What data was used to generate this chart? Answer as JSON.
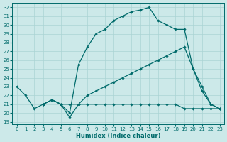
{
  "xlabel": "Humidex (Indice chaleur)",
  "xlim": [
    -0.5,
    23.5
  ],
  "ylim": [
    18.7,
    32.5
  ],
  "yticks": [
    19,
    20,
    21,
    22,
    23,
    24,
    25,
    26,
    27,
    28,
    29,
    30,
    31,
    32
  ],
  "xticks": [
    0,
    1,
    2,
    3,
    4,
    5,
    6,
    7,
    8,
    9,
    10,
    11,
    12,
    13,
    14,
    15,
    16,
    17,
    18,
    19,
    20,
    21,
    22,
    23
  ],
  "bg_color": "#cce9e9",
  "grid_color": "#aad4d4",
  "line_color": "#006b6b",
  "lines": [
    {
      "x": [
        0,
        1,
        2,
        3,
        4,
        5,
        6,
        7,
        8,
        9,
        10,
        11,
        12,
        13,
        14,
        15,
        16,
        17,
        18,
        19,
        20,
        21,
        22,
        23
      ],
      "y": [
        23.0,
        22.0,
        20.5,
        21.0,
        21.5,
        21.0,
        20.0,
        25.5,
        27.5,
        29.0,
        29.5,
        30.5,
        31.0,
        31.5,
        31.7,
        32.0,
        30.5,
        30.0,
        29.5,
        29.5,
        25.0,
        23.0,
        21.0,
        20.5
      ]
    },
    {
      "x": [
        3,
        4,
        5,
        6,
        7,
        8,
        9,
        10,
        11,
        12,
        13,
        14,
        15,
        16,
        17,
        18,
        19,
        20,
        21,
        22,
        23
      ],
      "y": [
        21.0,
        21.5,
        21.0,
        21.0,
        21.0,
        22.0,
        22.5,
        23.0,
        23.5,
        24.0,
        24.5,
        25.0,
        25.5,
        26.0,
        26.5,
        27.0,
        27.5,
        25.0,
        22.5,
        21.0,
        20.5
      ]
    },
    {
      "x": [
        3,
        4,
        5,
        6,
        7,
        8,
        9,
        10,
        11,
        12,
        13,
        14,
        15,
        16,
        17,
        18,
        19,
        20,
        21,
        22,
        23
      ],
      "y": [
        21.0,
        21.5,
        21.0,
        19.5,
        21.0,
        21.0,
        21.0,
        21.0,
        21.0,
        21.0,
        21.0,
        21.0,
        21.0,
        21.0,
        21.0,
        21.0,
        20.5,
        20.5,
        20.5,
        20.5,
        20.5
      ]
    }
  ]
}
